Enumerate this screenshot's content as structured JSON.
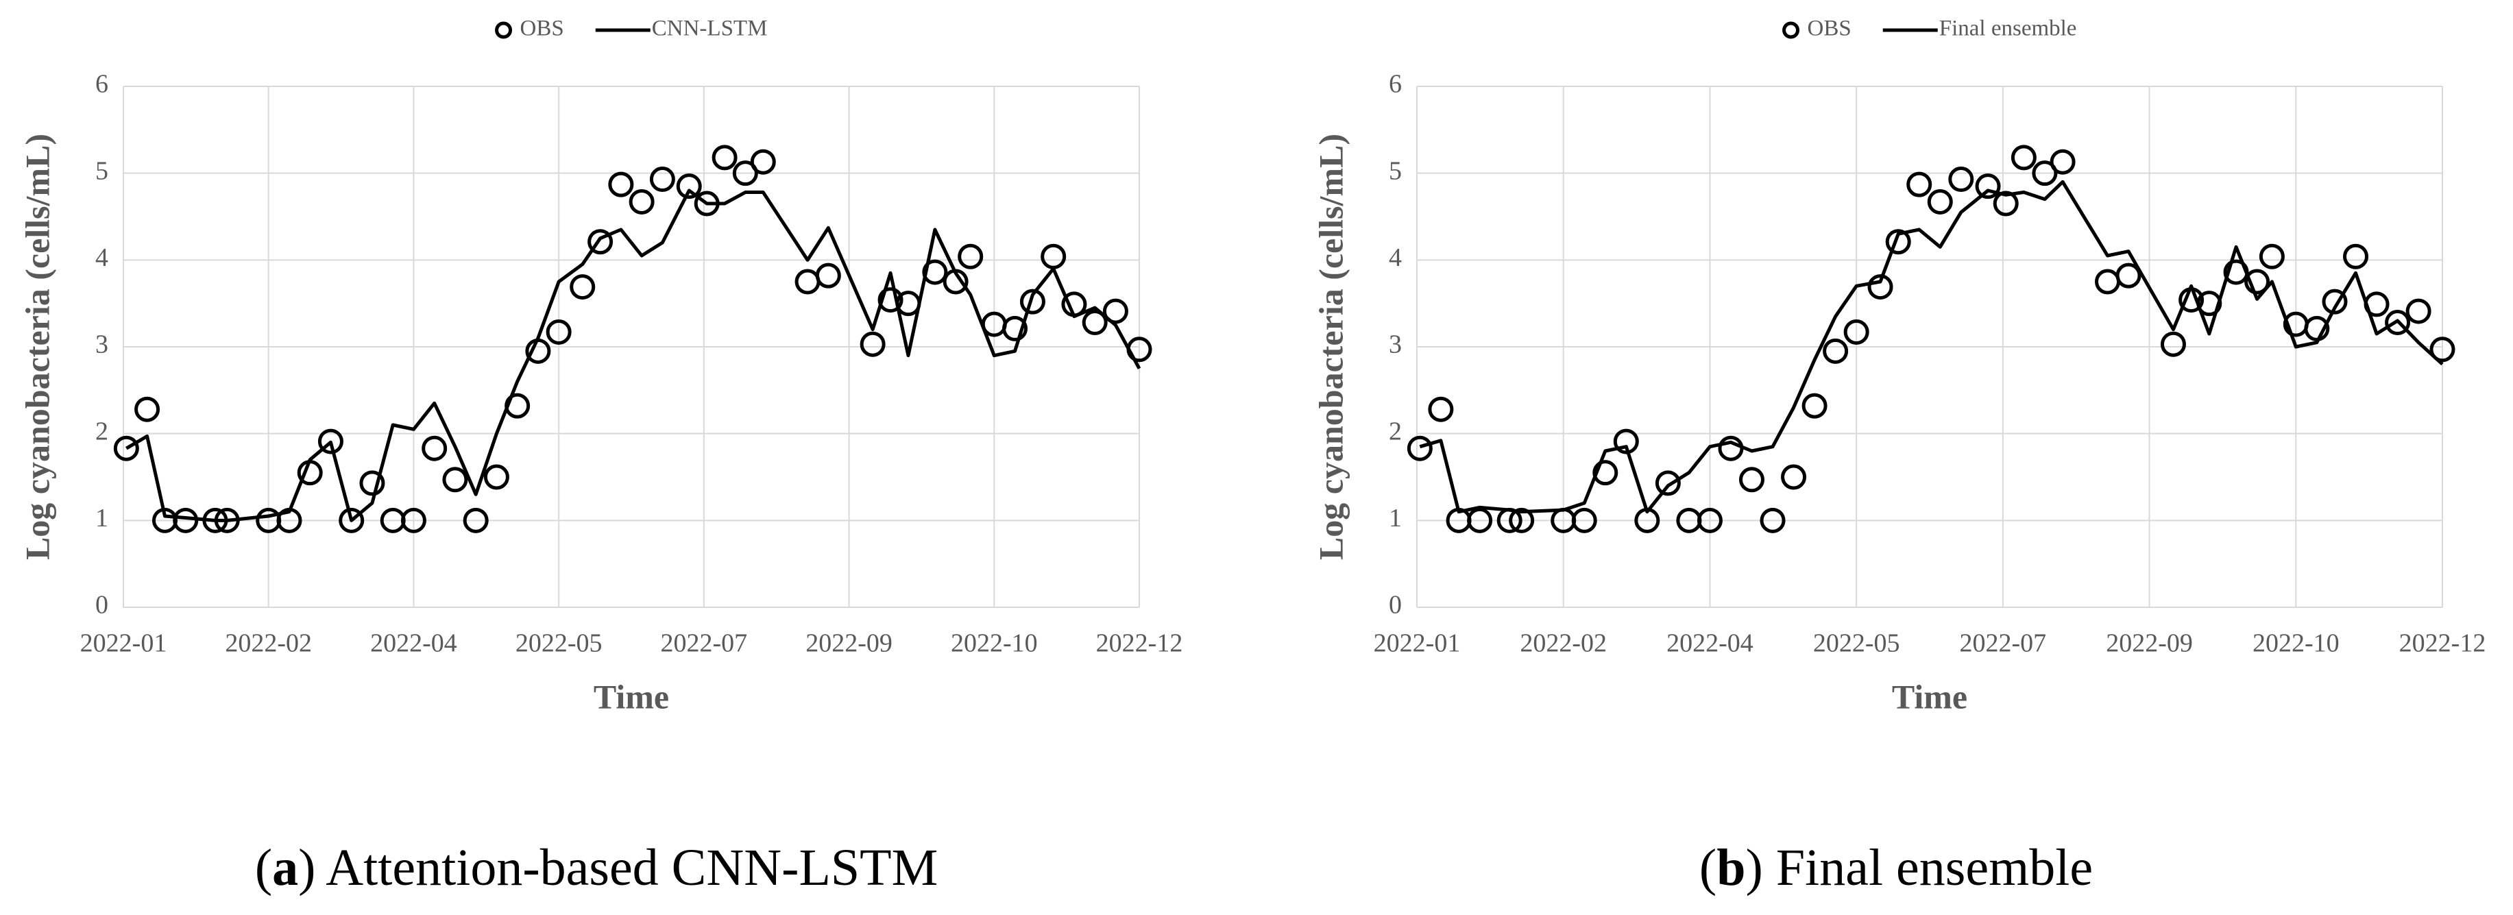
{
  "chart_data": [
    {
      "type": "line",
      "xlabel": "Time",
      "ylabel": "Log cyanobacteria  (cells/mL)",
      "caption": [
        "(",
        "a",
        ") Attention-based CNN-LSTM"
      ],
      "x": [
        1,
        8,
        14,
        21,
        31,
        35,
        49,
        56,
        63,
        70,
        77,
        84,
        91,
        98,
        105,
        112,
        119,
        126,
        133,
        140,
        147,
        155,
        161,
        168,
        175,
        182,
        191,
        197,
        203,
        210,
        216,
        231,
        238,
        253,
        259,
        265,
        274,
        281,
        286,
        294,
        301,
        307,
        314,
        321,
        328,
        335,
        343
      ],
      "xlim": [
        0,
        343
      ],
      "xticks": [
        {
          "value": 0,
          "label": "2022-01"
        },
        {
          "value": 49,
          "label": "2022-02"
        },
        {
          "value": 98,
          "label": "2022-04"
        },
        {
          "value": 147,
          "label": "2022-05"
        },
        {
          "value": 196,
          "label": "2022-07"
        },
        {
          "value": 245,
          "label": "2022-09"
        },
        {
          "value": 294,
          "label": "2022-10"
        },
        {
          "value": 343,
          "label": "2022-12"
        }
      ],
      "ylim": [
        0,
        6
      ],
      "yticks": [
        0,
        1,
        2,
        3,
        4,
        5,
        6
      ],
      "grid": true,
      "series": [
        {
          "name": "OBS",
          "color": "#000000",
          "style": "markers",
          "values": [
            1.83,
            2.28,
            1.0,
            1.0,
            1.0,
            1.0,
            1.0,
            1.0,
            1.55,
            1.91,
            1.0,
            1.43,
            1.0,
            1.0,
            1.83,
            1.47,
            1.0,
            1.5,
            2.32,
            2.95,
            3.17,
            3.69,
            4.21,
            4.87,
            4.67,
            4.93,
            4.85,
            4.65,
            5.18,
            5.0,
            5.13,
            3.75,
            3.82,
            3.03,
            3.54,
            3.5,
            3.86,
            3.75,
            4.04,
            3.26,
            3.21,
            3.52,
            4.04,
            3.49,
            3.28,
            3.41,
            2.97
          ]
        },
        {
          "name": "CNN-LSTM",
          "color": "#000000",
          "style": "line",
          "values": [
            1.83,
            1.97,
            1.05,
            1.03,
            1.0,
            1.0,
            1.05,
            1.1,
            1.7,
            1.9,
            1.0,
            1.2,
            2.1,
            2.05,
            2.35,
            1.85,
            1.3,
            2.0,
            2.6,
            3.1,
            3.75,
            3.95,
            4.25,
            4.35,
            4.05,
            4.2,
            4.8,
            4.65,
            4.65,
            4.78,
            4.78,
            4.0,
            4.37,
            3.2,
            3.85,
            2.9,
            4.35,
            3.85,
            3.6,
            2.9,
            2.95,
            3.6,
            3.9,
            3.35,
            3.45,
            3.25,
            2.75
          ]
        }
      ]
    },
    {
      "type": "line",
      "xlabel": "Time",
      "ylabel": "Log cyanobacteria  (cells/mL)",
      "caption": [
        "(",
        "b",
        ") Final ensemble"
      ],
      "x": [
        1,
        8,
        14,
        21,
        31,
        35,
        49,
        56,
        63,
        70,
        77,
        84,
        91,
        98,
        105,
        112,
        119,
        126,
        133,
        140,
        147,
        155,
        161,
        168,
        175,
        182,
        191,
        197,
        203,
        210,
        216,
        231,
        238,
        253,
        259,
        265,
        274,
        281,
        286,
        294,
        301,
        307,
        314,
        321,
        328,
        335,
        343
      ],
      "xlim": [
        0,
        343
      ],
      "xticks": [
        {
          "value": 0,
          "label": "2022-01"
        },
        {
          "value": 49,
          "label": "2022-02"
        },
        {
          "value": 98,
          "label": "2022-04"
        },
        {
          "value": 147,
          "label": "2022-05"
        },
        {
          "value": 196,
          "label": "2022-07"
        },
        {
          "value": 245,
          "label": "2022-09"
        },
        {
          "value": 294,
          "label": "2022-10"
        },
        {
          "value": 343,
          "label": "2022-12"
        }
      ],
      "ylim": [
        0,
        6
      ],
      "yticks": [
        0,
        1,
        2,
        3,
        4,
        5,
        6
      ],
      "grid": true,
      "series": [
        {
          "name": "OBS",
          "color": "#000000",
          "style": "markers",
          "values": [
            1.83,
            2.28,
            1.0,
            1.0,
            1.0,
            1.0,
            1.0,
            1.0,
            1.55,
            1.91,
            1.0,
            1.43,
            1.0,
            1.0,
            1.83,
            1.47,
            1.0,
            1.5,
            2.32,
            2.95,
            3.17,
            3.69,
            4.21,
            4.87,
            4.67,
            4.93,
            4.85,
            4.65,
            5.18,
            5.0,
            5.13,
            3.75,
            3.82,
            3.03,
            3.54,
            3.5,
            3.86,
            3.75,
            4.04,
            3.26,
            3.21,
            3.52,
            4.04,
            3.49,
            3.28,
            3.41,
            2.97
          ]
        },
        {
          "name": "Final ensemble",
          "color": "#000000",
          "style": "line",
          "values": [
            1.85,
            1.92,
            1.1,
            1.15,
            1.12,
            1.1,
            1.12,
            1.2,
            1.8,
            1.85,
            1.1,
            1.4,
            1.55,
            1.85,
            1.9,
            1.8,
            1.85,
            2.3,
            2.85,
            3.35,
            3.7,
            3.75,
            4.3,
            4.35,
            4.15,
            4.55,
            4.8,
            4.75,
            4.78,
            4.7,
            4.9,
            4.05,
            4.1,
            3.2,
            3.7,
            3.15,
            4.15,
            3.55,
            3.75,
            3.0,
            3.05,
            3.45,
            3.85,
            3.15,
            3.3,
            3.05,
            2.8
          ]
        }
      ]
    }
  ]
}
